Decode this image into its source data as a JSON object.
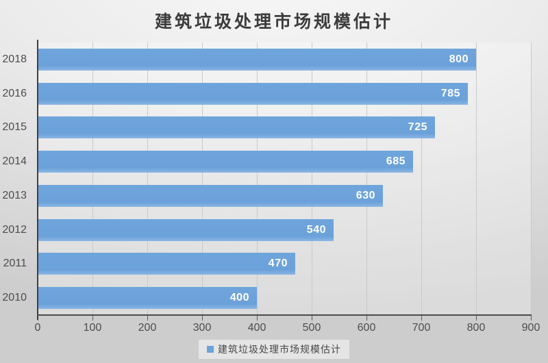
{
  "title": "建筑垃圾处理市场规模估计",
  "legend": {
    "label": "建筑垃圾处理市场规模估计",
    "marker_color": "#6ca3da"
  },
  "chart_data": {
    "type": "bar",
    "orientation": "horizontal",
    "title": "建筑垃圾处理市场规模估计",
    "categories": [
      "2018",
      "2016",
      "2015",
      "2014",
      "2013",
      "2012",
      "2011",
      "2010"
    ],
    "values": [
      800,
      785,
      725,
      685,
      630,
      540,
      470,
      400
    ],
    "series_name": "建筑垃圾处理市场规模估计",
    "xlabel": "",
    "ylabel": "",
    "xlim": [
      0,
      900
    ],
    "x_ticks": [
      0,
      100,
      200,
      300,
      400,
      500,
      600,
      700,
      800,
      900
    ],
    "grid": true,
    "bar_color": "#6ca3da",
    "value_label_color": "#ffffff",
    "legend_position": "bottom"
  }
}
